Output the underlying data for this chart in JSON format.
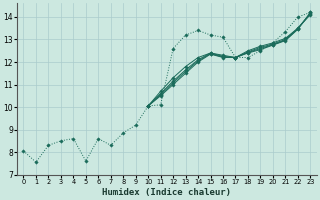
{
  "xlabel": "Humidex (Indice chaleur)",
  "bg_color": "#cce8e0",
  "line_color": "#1a6b5a",
  "grid_color": "#aacccc",
  "xlim": [
    -0.5,
    23.5
  ],
  "ylim": [
    7.0,
    14.6
  ],
  "yticks": [
    7,
    8,
    9,
    10,
    11,
    12,
    13,
    14
  ],
  "xticks": [
    0,
    1,
    2,
    3,
    4,
    5,
    6,
    7,
    8,
    9,
    10,
    11,
    12,
    13,
    14,
    15,
    16,
    17,
    18,
    19,
    20,
    21,
    22,
    23
  ],
  "series_main": [
    [
      0,
      8.05
    ],
    [
      1,
      7.55
    ],
    [
      2,
      8.3
    ],
    [
      3,
      8.5
    ],
    [
      4,
      8.6
    ],
    [
      5,
      7.6
    ],
    [
      6,
      8.6
    ],
    [
      7,
      8.3
    ],
    [
      8,
      8.85
    ],
    [
      9,
      9.2
    ],
    [
      10,
      10.05
    ],
    [
      11,
      10.1
    ],
    [
      12,
      12.6
    ],
    [
      13,
      13.2
    ],
    [
      14,
      13.4
    ],
    [
      15,
      13.2
    ],
    [
      16,
      13.1
    ],
    [
      17,
      12.2
    ],
    [
      18,
      12.2
    ],
    [
      19,
      12.5
    ],
    [
      20,
      12.85
    ],
    [
      21,
      13.35
    ],
    [
      22,
      14.0
    ],
    [
      23,
      14.2
    ]
  ],
  "series_straight1": [
    [
      10,
      10.05
    ],
    [
      11,
      10.5
    ],
    [
      12,
      11.0
    ],
    [
      13,
      11.5
    ],
    [
      14,
      12.0
    ],
    [
      15,
      12.35
    ],
    [
      16,
      12.2
    ],
    [
      17,
      12.2
    ],
    [
      18,
      12.4
    ],
    [
      19,
      12.55
    ],
    [
      20,
      12.75
    ],
    [
      21,
      12.95
    ],
    [
      22,
      13.45
    ],
    [
      23,
      14.2
    ]
  ],
  "series_straight2": [
    [
      10,
      10.05
    ],
    [
      11,
      10.6
    ],
    [
      12,
      11.15
    ],
    [
      13,
      11.65
    ],
    [
      14,
      12.1
    ],
    [
      15,
      12.4
    ],
    [
      16,
      12.25
    ],
    [
      17,
      12.2
    ],
    [
      18,
      12.45
    ],
    [
      19,
      12.65
    ],
    [
      20,
      12.8
    ],
    [
      21,
      13.0
    ],
    [
      22,
      13.5
    ],
    [
      23,
      14.15
    ]
  ],
  "series_straight3": [
    [
      10,
      10.05
    ],
    [
      11,
      10.7
    ],
    [
      12,
      11.3
    ],
    [
      13,
      11.8
    ],
    [
      14,
      12.2
    ],
    [
      15,
      12.4
    ],
    [
      16,
      12.3
    ],
    [
      17,
      12.2
    ],
    [
      18,
      12.5
    ],
    [
      19,
      12.7
    ],
    [
      20,
      12.85
    ],
    [
      21,
      13.05
    ],
    [
      22,
      13.5
    ],
    [
      23,
      14.1
    ]
  ],
  "series_straight4": [
    [
      10,
      10.05
    ],
    [
      11,
      10.55
    ],
    [
      12,
      11.08
    ],
    [
      13,
      11.58
    ],
    [
      14,
      12.05
    ],
    [
      15,
      12.37
    ],
    [
      16,
      12.22
    ],
    [
      17,
      12.2
    ],
    [
      18,
      12.42
    ],
    [
      19,
      12.6
    ],
    [
      20,
      12.77
    ],
    [
      21,
      12.97
    ],
    [
      22,
      13.47
    ],
    [
      23,
      14.17
    ]
  ]
}
